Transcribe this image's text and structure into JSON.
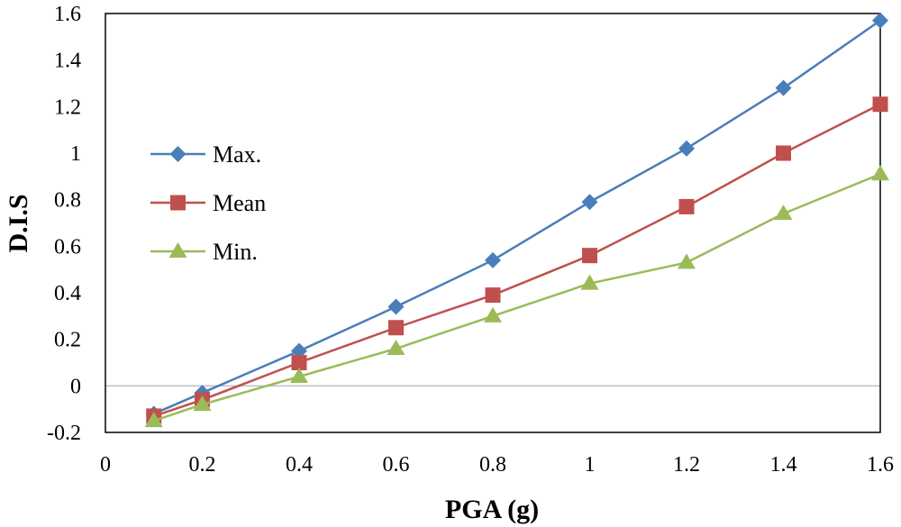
{
  "chart_data": {
    "type": "line",
    "title": "",
    "xlabel": "PGA (g)",
    "ylabel": "D.I.S",
    "xlim": [
      0,
      1.6
    ],
    "ylim": [
      -0.2,
      1.6
    ],
    "xticks": [
      0,
      0.2,
      0.4,
      0.6,
      0.8,
      1,
      1.2,
      1.4,
      1.6
    ],
    "xtick_labels": [
      "0",
      "0.2",
      "0.4",
      "0.6",
      "0.8",
      "1",
      "1.2",
      "1.4",
      "1.6"
    ],
    "yticks": [
      -0.2,
      0,
      0.2,
      0.4,
      0.6,
      0.8,
      1,
      1.2,
      1.4,
      1.6
    ],
    "ytick_labels": [
      "-0.2",
      "0",
      "0.2",
      "0.4",
      "0.6",
      "0.8",
      "1",
      "1.2",
      "1.4",
      "1.6"
    ],
    "legend_position": "center-left",
    "series": [
      {
        "name": "Max.",
        "color": "#4a7ebb",
        "marker": "diamond",
        "x": [
          0.1,
          0.2,
          0.4,
          0.6,
          0.8,
          1.0,
          1.2,
          1.4,
          1.6
        ],
        "values": [
          -0.12,
          -0.03,
          0.15,
          0.34,
          0.54,
          0.79,
          1.02,
          1.28,
          1.57
        ]
      },
      {
        "name": "Mean",
        "color": "#c0504d",
        "marker": "square",
        "x": [
          0.1,
          0.2,
          0.4,
          0.6,
          0.8,
          1.0,
          1.2,
          1.4,
          1.6
        ],
        "values": [
          -0.13,
          -0.06,
          0.1,
          0.25,
          0.39,
          0.56,
          0.77,
          1.0,
          1.21
        ]
      },
      {
        "name": "Min.",
        "color": "#9bbb59",
        "marker": "triangle",
        "x": [
          0.1,
          0.2,
          0.4,
          0.6,
          0.8,
          1.0,
          1.2,
          1.4,
          1.6
        ],
        "values": [
          -0.15,
          -0.08,
          0.04,
          0.16,
          0.3,
          0.44,
          0.53,
          0.74,
          0.91
        ]
      }
    ]
  }
}
